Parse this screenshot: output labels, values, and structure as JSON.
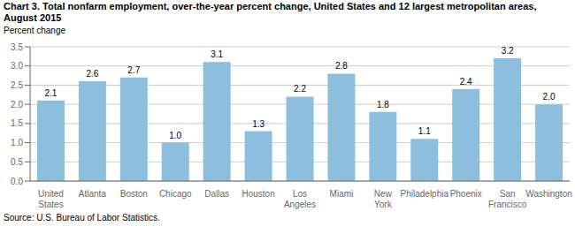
{
  "chart_data": {
    "type": "bar",
    "title": "Chart 3. Total nonfarm employment, over-the-year percent change, United States and 12 largest metropolitan areas, August 2015",
    "ylabel": "Percent change",
    "source": "Source: U.S. Bureau of Labor Statistics.",
    "categories": [
      "United\nStates",
      "Atlanta",
      "Boston",
      "Chicago",
      "Dallas",
      "Houston",
      "Los\nAngeles",
      "Miami",
      "New\nYork",
      "Philadelphia",
      "Phoenix",
      "San\nFrancisco",
      "Washington"
    ],
    "values": [
      2.1,
      2.6,
      2.7,
      1.0,
      3.1,
      1.3,
      2.2,
      2.8,
      1.8,
      1.1,
      2.4,
      3.2,
      2.0
    ],
    "value_labels": [
      "2.1",
      "2.6",
      "2.7",
      "1.0",
      "3.1",
      "1.3",
      "2.2",
      "2.8",
      "1.8",
      "1.1",
      "2.4",
      "3.2",
      "2.0"
    ],
    "data_labels": true,
    "color": "#8bbfdd",
    "ylim": [
      0,
      3.5
    ],
    "yticks": [
      {
        "value": 0,
        "label": "0.0"
      },
      0.5,
      {
        "value": 1,
        "label": "1.0"
      },
      1.5,
      {
        "value": 2,
        "label": "2.0"
      },
      2.5,
      {
        "value": 3,
        "label": "3.0"
      },
      3.5
    ],
    "grid": true
  }
}
